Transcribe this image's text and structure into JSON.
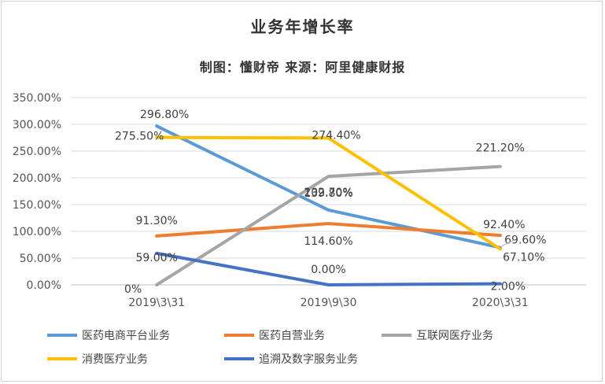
{
  "chart_data": {
    "type": "line",
    "title": "业务年增长率",
    "subtitle": "制图：懂财帝  来源：阿里健康财报",
    "categories": [
      "2019\\3\\31",
      "2019\\9\\30",
      "2020\\3\\31"
    ],
    "ylim": [
      0,
      350
    ],
    "yticks": [
      "0.00%",
      "50.00%",
      "100.00%",
      "150.00%",
      "200.00%",
      "250.00%",
      "300.00%",
      "350.00%"
    ],
    "grid": true,
    "legend_position": "bottom",
    "series": [
      {
        "name": "医药电商平台业务",
        "color": "#5B9BD5",
        "values": [
          296.8,
          139.8,
          69.6
        ],
        "labels": [
          "296.80%",
          "139.80%",
          "69.60%"
        ]
      },
      {
        "name": "医药自营业务",
        "color": "#ED7D31",
        "values": [
          91.3,
          114.6,
          92.4
        ],
        "labels": [
          "91.30%",
          "114.60%",
          "92.40%"
        ]
      },
      {
        "name": "互联网医疗业务",
        "color": "#A5A5A5",
        "values": [
          0,
          202.7,
          221.2
        ],
        "labels": [
          "0%",
          "202.70%",
          "221.20%"
        ]
      },
      {
        "name": "消费医疗业务",
        "color": "#FFC000",
        "values": [
          275.5,
          274.4,
          67.1
        ],
        "labels": [
          "275.50%",
          "274.40%",
          "67.10%"
        ]
      },
      {
        "name": "追溯及数字服务业务",
        "color": "#4472C4",
        "values": [
          59.0,
          0.0,
          2.0
        ],
        "labels": [
          "59.00%",
          "0.00%",
          "2.00%"
        ]
      }
    ]
  }
}
